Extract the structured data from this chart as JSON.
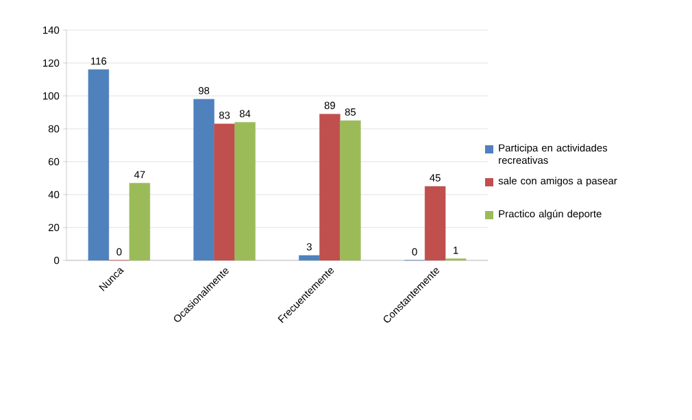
{
  "chart_data": {
    "type": "bar",
    "categories": [
      "Nunca",
      "Ocasionalmente",
      "Frecuentemente",
      "Constantemente"
    ],
    "series": [
      {
        "name": "Participa en actividades recreativas",
        "color": "#4f81bd",
        "values": [
          116,
          98,
          3,
          0
        ]
      },
      {
        "name": "sale con amigos a pasear",
        "color": "#c0504d",
        "values": [
          0,
          83,
          89,
          45
        ]
      },
      {
        "name": "Practico algún deporte",
        "color": "#9bbb59",
        "values": [
          47,
          84,
          85,
          1
        ]
      }
    ],
    "ylim": [
      0,
      140
    ],
    "yticks": [
      0,
      20,
      40,
      60,
      80,
      100,
      120,
      140
    ],
    "grid": "y",
    "legend": "right",
    "data_labels": true
  }
}
